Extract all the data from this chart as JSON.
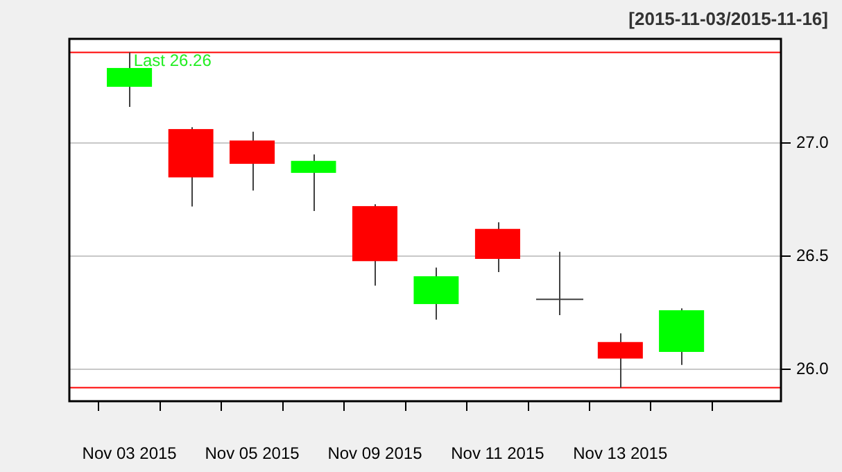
{
  "chart_data": {
    "type": "candlestick",
    "title": "[2015-11-03/2015-11-16]",
    "categories": [
      "Nov 03 2015",
      null,
      "Nov 05 2015",
      null,
      "Nov 09 2015",
      null,
      "Nov 11 2015",
      null,
      "Nov 13 2015",
      null
    ],
    "ohlc": [
      [
        27.25,
        27.4,
        27.16,
        27.33
      ],
      [
        27.06,
        27.07,
        26.72,
        26.85
      ],
      [
        27.01,
        27.05,
        26.79,
        26.91
      ],
      [
        26.87,
        26.95,
        26.7,
        26.92
      ],
      [
        26.72,
        26.73,
        26.37,
        26.48
      ],
      [
        26.29,
        26.45,
        26.22,
        26.41
      ],
      [
        26.62,
        26.65,
        26.43,
        26.49
      ],
      [
        26.31,
        26.52,
        26.24,
        26.31
      ],
      [
        26.12,
        26.16,
        25.92,
        26.05
      ],
      [
        26.08,
        26.27,
        26.02,
        26.26
      ]
    ],
    "colors": [
      "#00ff00",
      "#ff0000",
      "#ff0000",
      "#00ff00",
      "#ff0000",
      "#00ff00",
      "#ff0000",
      "#404040",
      "#ff0000",
      "#00ff00"
    ],
    "ylim": [
      25.86,
      27.46
    ],
    "yticks": [
      {
        "value": 26,
        "label": "26.0"
      },
      {
        "value": 26.5,
        "label": "26.5"
      },
      {
        "value": 27,
        "label": "27.0"
      }
    ],
    "grid": "y",
    "ref_lines": [
      {
        "axis": "y",
        "value": 27.4,
        "color": "#ff0000"
      },
      {
        "axis": "y",
        "value": 25.92,
        "color": "#ff0000"
      }
    ],
    "annotations": [
      "Last 26.26"
    ]
  }
}
